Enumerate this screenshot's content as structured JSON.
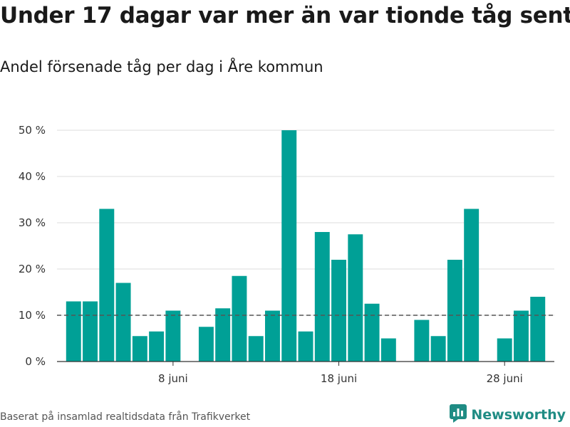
{
  "title": "Under 17 dagar var mer än var tionde tåg sent",
  "subtitle": "Andel försenade tåg per dag i Åre kommun",
  "source": "Baserat på insamlad realtidsdata från Trafikverket",
  "brand": {
    "name": "Newsworthy",
    "icon": "newsworthy-logo-icon"
  },
  "colors": {
    "bar": "#00a096",
    "reference_line": "#555555",
    "grid": "#dddddd",
    "brand": "#1f8c84"
  },
  "chart_data": {
    "type": "bar",
    "x_unit": "day of June",
    "x": [
      2,
      3,
      4,
      5,
      6,
      7,
      8,
      9,
      10,
      11,
      12,
      13,
      14,
      15,
      16,
      17,
      18,
      19,
      20,
      21,
      22,
      23,
      24,
      25,
      26,
      27,
      28,
      29,
      30
    ],
    "values": [
      13,
      13,
      33,
      17,
      5.5,
      6.5,
      11,
      0,
      7.5,
      11.5,
      18.5,
      5.5,
      11,
      50,
      6.5,
      28,
      22,
      27.5,
      12.5,
      5,
      0,
      9,
      5.5,
      22,
      33,
      0,
      5,
      11,
      14
    ],
    "xlim": [
      1,
      31
    ],
    "xticks": [
      8,
      18,
      28
    ],
    "xtick_labels": [
      "8 juni",
      "18 juni",
      "28 juni"
    ],
    "ylim": [
      0,
      50
    ],
    "yticks": [
      0,
      10,
      20,
      30,
      40,
      50
    ],
    "ytick_labels": [
      "0 %",
      "10 %",
      "20 %",
      "30 %",
      "40 %",
      "50 %"
    ],
    "reference_line": 10,
    "grid": true,
    "xlabel": "",
    "ylabel": ""
  }
}
